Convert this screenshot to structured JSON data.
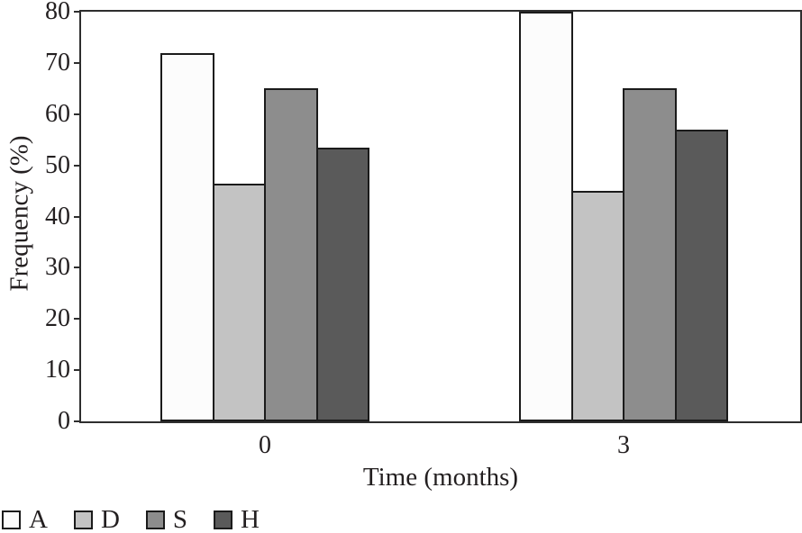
{
  "chart_data": {
    "type": "bar",
    "title": "",
    "xlabel": "Time (months)",
    "ylabel": "Frequency (%)",
    "categories": [
      "0",
      "3"
    ],
    "series": [
      {
        "name": "A",
        "values": [
          72,
          80
        ],
        "color": "#fcfcfc"
      },
      {
        "name": "D",
        "values": [
          46.5,
          45
        ],
        "color": "#c3c3c3"
      },
      {
        "name": "S",
        "values": [
          65,
          65
        ],
        "color": "#8d8d8d"
      },
      {
        "name": "H",
        "values": [
          53.5,
          57
        ],
        "color": "#5a5a5a"
      }
    ],
    "ylim": [
      0,
      80
    ],
    "yticks": [
      0,
      10,
      20,
      30,
      40,
      50,
      60,
      70,
      80
    ],
    "grid": false,
    "legend_position": "bottom-left",
    "bar_border_color": "#1b1b1b",
    "axis_color": "#2e2e2e",
    "text_color": "#231f20"
  }
}
